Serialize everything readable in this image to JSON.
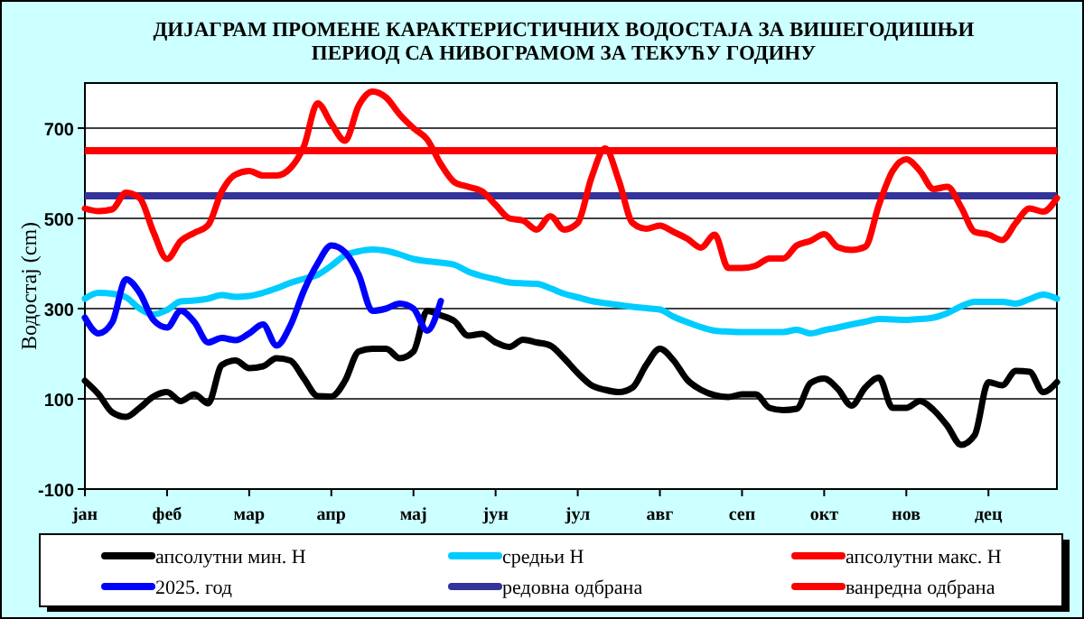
{
  "chart_data": {
    "type": "line",
    "title": "ДИЈАГРАМ ПРОМЕНЕ КАРАКТЕРИСТИЧНИХ ВОДОСТАЈА ЗА ВИШЕГОДИШЊИ\nПЕРИОД СА НИВОГРАМОМ ЗА ТЕКУЋУ ГОДИНУ",
    "ylabel": "Водостај (cm)",
    "categories": [
      "јан",
      null,
      null,
      null,
      null,
      null,
      "феб",
      null,
      null,
      null,
      null,
      null,
      "мар",
      null,
      null,
      null,
      null,
      null,
      "апр",
      null,
      null,
      null,
      null,
      null,
      "мај",
      null,
      null,
      null,
      null,
      null,
      "јун",
      null,
      null,
      null,
      null,
      null,
      "јул",
      null,
      null,
      null,
      null,
      null,
      "авг",
      null,
      null,
      null,
      null,
      null,
      "сеп",
      null,
      null,
      null,
      null,
      null,
      "окт",
      null,
      null,
      null,
      null,
      null,
      "нов",
      null,
      null,
      null,
      null,
      null,
      "дец",
      null,
      null,
      null,
      null,
      null
    ],
    "ylim": [
      -100,
      800
    ],
    "yticks": [
      -100,
      100,
      300,
      500,
      700
    ],
    "grid": "y",
    "legend": "bottom",
    "marker": "none",
    "line_style": "solid",
    "series": [
      {
        "name": "апсолутни мин. H",
        "color": "#000000",
        "values": [
          140,
          110,
          70,
          60,
          80,
          105,
          115,
          95,
          110,
          90,
          175,
          185,
          168,
          172,
          190,
          185,
          145,
          106,
          105,
          140,
          205,
          211,
          211,
          190,
          205,
          295,
          285,
          272,
          240,
          244,
          225,
          215,
          231,
          225,
          218,
          190,
          157,
          130,
          120,
          115,
          125,
          175,
          211,
          185,
          142,
          120,
          108,
          104,
          110,
          110,
          80,
          75,
          78,
          135,
          145,
          122,
          85,
          125,
          147,
          80,
          80,
          95,
          75,
          40,
          -2,
          20,
          137,
          130,
          162,
          160,
          115,
          137
        ]
      },
      {
        "name": "средњи H",
        "color": "#00ccff",
        "values": [
          322,
          335,
          333,
          325,
          300,
          287,
          297,
          316,
          318,
          322,
          330,
          326,
          328,
          335,
          345,
          357,
          366,
          375,
          395,
          418,
          427,
          431,
          428,
          420,
          410,
          405,
          402,
          397,
          382,
          372,
          365,
          358,
          356,
          355,
          345,
          333,
          325,
          317,
          312,
          308,
          304,
          301,
          298,
          282,
          270,
          259,
          251,
          249,
          248,
          248,
          248,
          248,
          253,
          245,
          252,
          258,
          265,
          271,
          277,
          276,
          275,
          277,
          280,
          290,
          305,
          315,
          315,
          315,
          311,
          321,
          331,
          322
        ]
      },
      {
        "name": "апсолутни макс. H",
        "color": "#ff0000",
        "values": [
          522,
          516,
          520,
          557,
          545,
          470,
          410,
          450,
          468,
          485,
          560,
          597,
          605,
          595,
          595,
          611,
          660,
          755,
          710,
          672,
          750,
          781,
          768,
          730,
          700,
          675,
          620,
          580,
          570,
          560,
          530,
          500,
          495,
          475,
          505,
          475,
          490,
          590,
          655,
          584,
          490,
          477,
          484,
          470,
          455,
          435,
          464,
          390,
          390,
          395,
          411,
          411,
          440,
          450,
          465,
          436,
          430,
          437,
          530,
          605,
          631,
          605,
          565,
          570,
          525,
          470,
          464,
          452,
          490,
          522,
          515,
          545
        ]
      },
      {
        "name": "2025. год",
        "color": "#0000ff",
        "values": [
          280,
          245,
          270,
          365,
          335,
          275,
          258,
          295,
          270,
          225,
          235,
          230,
          245,
          265,
          218,
          262,
          340,
          400,
          440,
          425,
          375,
          295,
          300,
          311,
          300,
          251,
          317,
          null,
          null,
          null,
          null,
          null,
          null,
          null,
          null,
          null,
          null,
          null,
          null,
          null,
          null,
          null,
          null,
          null,
          null,
          null,
          null,
          null,
          null,
          null,
          null,
          null,
          null,
          null,
          null,
          null,
          null,
          null,
          null,
          null,
          null,
          null,
          null,
          null,
          null,
          null,
          null,
          null,
          null,
          null,
          null,
          null
        ]
      }
    ],
    "ref_lines": [
      {
        "axis": "y",
        "value": 550,
        "label": "редовна одбрана",
        "color": "#333399"
      },
      {
        "axis": "y",
        "value": 650,
        "label": "ванредна одбрана",
        "color": "#ff0000"
      }
    ]
  }
}
